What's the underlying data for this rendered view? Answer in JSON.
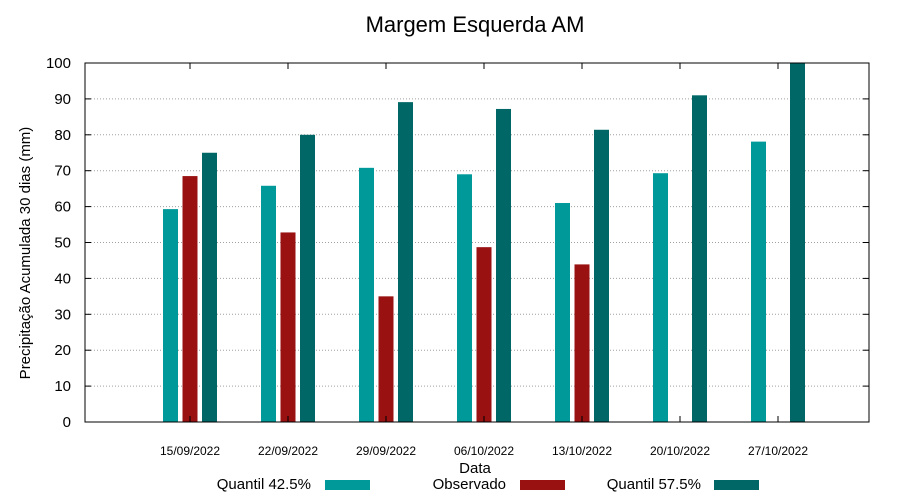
{
  "chart_data": {
    "type": "bar",
    "title": "Margem Esquerda AM",
    "xlabel": "Data",
    "ylabel": "Precipitação Acumulada 30 dias (mm)",
    "ylim": [
      0,
      100
    ],
    "yticks": [
      0,
      10,
      20,
      30,
      40,
      50,
      60,
      70,
      80,
      90,
      100
    ],
    "grid": "horizontal dotted",
    "legend_position": "bottom",
    "categories": [
      "15/09/2022",
      "22/09/2022",
      "29/09/2022",
      "06/10/2022",
      "13/10/2022",
      "20/10/2022",
      "27/10/2022"
    ],
    "series": [
      {
        "name": "Quantil 42.5%",
        "color": "#009999",
        "values": [
          59.3,
          65.8,
          70.8,
          69.0,
          61.0,
          69.3,
          78.1
        ]
      },
      {
        "name": "Observado",
        "color": "#991111",
        "values": [
          68.5,
          52.8,
          35.0,
          48.7,
          43.9,
          null,
          null
        ]
      },
      {
        "name": "Quantil 57.5%",
        "color": "#006666",
        "values": [
          75.0,
          80.0,
          89.1,
          87.2,
          81.4,
          91.0,
          100.0
        ]
      }
    ]
  }
}
